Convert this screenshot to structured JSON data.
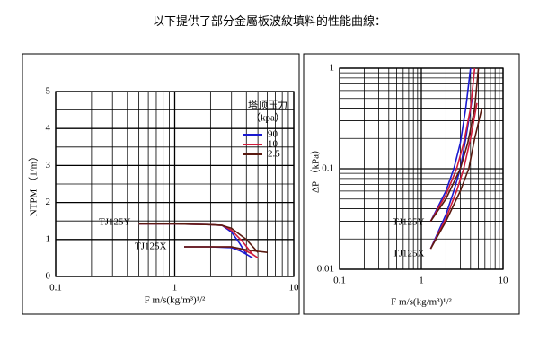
{
  "title": "以下提供了部分金屬板波紋填料的性能曲線：",
  "chart_data": [
    {
      "type": "line",
      "xscale": "log",
      "yscale": "linear",
      "xlabel": "F   m/s(kg/m³)¹/²",
      "ylabel": "NTPM （1/m）",
      "xlim": [
        0.1,
        10
      ],
      "xticks": [
        0.1,
        1,
        10
      ],
      "ylim": [
        0,
        5
      ],
      "yticks": [
        0,
        1,
        2,
        3,
        4,
        5
      ],
      "grid": true,
      "minor_grid": true,
      "legend": {
        "title": [
          "塔顶压力",
          "（kpa）"
        ],
        "position": "upper right"
      },
      "annotations": [
        "TJ125Y",
        "TJ125X"
      ],
      "series": [
        {
          "name": "90",
          "color": "#1a1ad0",
          "curves": [
            {
              "x": [
                0.5,
                1,
                2,
                2.5,
                3,
                3.5,
                4
              ],
              "values": [
                1.42,
                1.42,
                1.4,
                1.38,
                1.2,
                0.9,
                0.6
              ]
            },
            {
              "x": [
                1.2,
                2,
                3,
                3.5,
                4,
                4.5
              ],
              "values": [
                0.8,
                0.8,
                0.78,
                0.7,
                0.6,
                0.5
              ]
            }
          ]
        },
        {
          "name": "10",
          "color": "#d01a3a",
          "curves": [
            {
              "x": [
                0.5,
                1,
                2,
                2.5,
                3,
                3.7,
                4.5
              ],
              "values": [
                1.42,
                1.42,
                1.4,
                1.38,
                1.25,
                0.95,
                0.6
              ]
            },
            {
              "x": [
                1.2,
                2,
                3,
                3.8,
                4.5,
                5
              ],
              "values": [
                0.8,
                0.8,
                0.8,
                0.72,
                0.6,
                0.5
              ]
            }
          ]
        },
        {
          "name": "2.5",
          "color": "#5a1a10",
          "curves": [
            {
              "x": [
                0.5,
                1,
                2,
                2.5,
                3,
                4,
                5
              ],
              "values": [
                1.42,
                1.42,
                1.4,
                1.38,
                1.3,
                1.0,
                0.65
              ]
            },
            {
              "x": [
                1.2,
                2,
                3,
                4,
                5,
                6
              ],
              "values": [
                0.8,
                0.8,
                0.8,
                0.72,
                0.68,
                0.65
              ]
            }
          ]
        }
      ]
    },
    {
      "type": "line",
      "xscale": "log",
      "yscale": "log",
      "xlabel": "F   m/s(kg/m³)¹/²",
      "ylabel": "ΔP （kPa）",
      "xlim": [
        0.1,
        10
      ],
      "xticks": [
        0.1,
        1,
        10
      ],
      "ylim": [
        0.01,
        1
      ],
      "yticks": [
        0.01,
        0.1,
        1
      ],
      "grid": true,
      "minor_grid": true,
      "annotations": [
        "TJ125Y",
        "TJ125X"
      ],
      "series": [
        {
          "name": "90",
          "color": "#1a1ad0",
          "curves": [
            {
              "x": [
                1.3,
                2,
                2.5,
                3,
                3.5,
                4
              ],
              "values": [
                0.03,
                0.06,
                0.1,
                0.18,
                0.4,
                1
              ]
            },
            {
              "x": [
                1.3,
                2,
                2.5,
                3,
                3.5,
                4.2
              ],
              "values": [
                0.016,
                0.035,
                0.06,
                0.1,
                0.2,
                0.5
              ]
            }
          ]
        },
        {
          "name": "10",
          "color": "#d01a3a",
          "curves": [
            {
              "x": [
                1.3,
                2,
                2.7,
                3.3,
                4,
                4.5
              ],
              "values": [
                0.03,
                0.055,
                0.1,
                0.18,
                0.4,
                1
              ]
            },
            {
              "x": [
                1.3,
                2,
                2.7,
                3.3,
                4,
                4.8
              ],
              "values": [
                0.016,
                0.032,
                0.06,
                0.1,
                0.2,
                0.45
              ]
            }
          ]
        },
        {
          "name": "2.5",
          "color": "#5a1a10",
          "curves": [
            {
              "x": [
                1.3,
                2,
                3,
                3.7,
                4.5,
                5
              ],
              "values": [
                0.03,
                0.05,
                0.1,
                0.18,
                0.4,
                1
              ]
            },
            {
              "x": [
                1.3,
                2,
                3,
                3.8,
                4.5,
                5.5
              ],
              "values": [
                0.016,
                0.03,
                0.06,
                0.1,
                0.2,
                0.4
              ]
            }
          ]
        }
      ]
    }
  ]
}
